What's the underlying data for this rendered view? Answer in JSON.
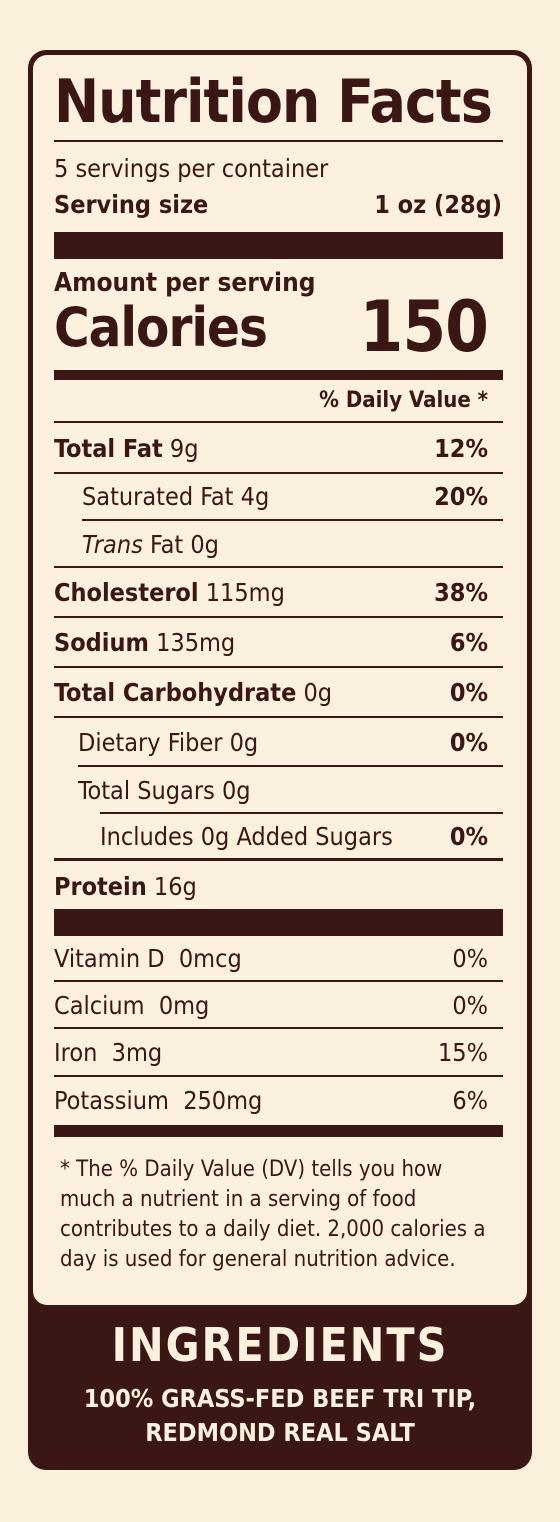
{
  "label": {
    "title": "Nutrition Facts",
    "servings_per_container": "5 servings per container",
    "serving_size_label": "Serving size",
    "serving_size_value": "1 oz (28g)",
    "amount_per_serving": "Amount per serving",
    "calories_label": "Calories",
    "calories_value": "150",
    "daily_value_header": "% Daily Value *",
    "nutrients": [
      {
        "name": "Total Fat",
        "amount": "9g",
        "dv": "12%"
      },
      {
        "name": "Saturated Fat",
        "amount": "4g",
        "dv": "20%"
      },
      {
        "name": "Trans",
        "name_suffix": "Fat",
        "amount": "0g",
        "dv": ""
      },
      {
        "name": "Cholesterol",
        "amount": "115mg",
        "dv": "38%"
      },
      {
        "name": "Sodium",
        "amount": "135mg",
        "dv": "6%"
      },
      {
        "name": "Total Carbohydrate",
        "amount": "0g",
        "dv": "0%"
      },
      {
        "name": "Dietary Fiber",
        "amount": "0g",
        "dv": "0%"
      },
      {
        "name": "Total Sugars",
        "amount": "0g",
        "dv": ""
      },
      {
        "name": "Includes 0g Added Sugars",
        "amount": "",
        "dv": "0%"
      },
      {
        "name": "Protein",
        "amount": "16g",
        "dv": ""
      }
    ],
    "vitamins": [
      {
        "name": "Vitamin D",
        "amount": "0mcg",
        "dv": "0%"
      },
      {
        "name": "Calcium",
        "amount": "0mg",
        "dv": "0%"
      },
      {
        "name": "Iron",
        "amount": "3mg",
        "dv": "15%"
      },
      {
        "name": "Potassium",
        "amount": "250mg",
        "dv": "6%"
      }
    ],
    "footnote": "* The % Daily Value (DV) tells you how much a nutrient in a serving of food contributes to a daily diet. 2,000 calories a day is used for general nutrition advice."
  },
  "ingredients": {
    "title": "INGREDIENTS",
    "line1": "100% GRASS-FED BEEF TRI TIP,",
    "line2": "REDMOND REAL SALT"
  },
  "colors": {
    "background": "#faf0dc",
    "ink": "#3a1714"
  }
}
